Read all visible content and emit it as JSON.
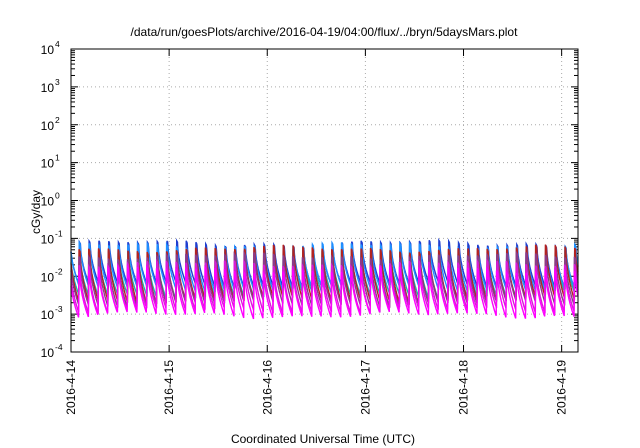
{
  "chart_data": {
    "type": "line",
    "title": "/data/run/goesPlots/archive/2016-04-19/04:00/flux/../bryn/5daysMars.plot",
    "xlabel": "Coordinated Universal Time (UTC)",
    "ylabel": "cGy/day",
    "yscale": "log",
    "ylim": [
      0.0001,
      10000
    ],
    "y_ticks": [
      {
        "value": 0.0001,
        "base": "10",
        "exp": "-4"
      },
      {
        "value": 0.001,
        "base": "10",
        "exp": "-3"
      },
      {
        "value": 0.01,
        "base": "10",
        "exp": "-2"
      },
      {
        "value": 0.1,
        "base": "10",
        "exp": "-1"
      },
      {
        "value": 1,
        "base": "10",
        "exp": "0"
      },
      {
        "value": 10,
        "base": "10",
        "exp": "1"
      },
      {
        "value": 100,
        "base": "10",
        "exp": "2"
      },
      {
        "value": 1000,
        "base": "10",
        "exp": "3"
      },
      {
        "value": 10000,
        "base": "10",
        "exp": "4"
      }
    ],
    "xlim": [
      "2016-04-14",
      "2016-04-19 04:00"
    ],
    "x_ticks": [
      "2016-4-14",
      "2016-4-15",
      "2016-4-16",
      "2016-4-17",
      "2016-4-18",
      "2016-4-19"
    ],
    "grid": true,
    "description_of_data": "Periodic sawtooth dose-rate curves (about 10 cycles per day) for several colored series, peaks near 0.05-0.09 cGy/day and troughs near 0.001-0.006 cGy/day.",
    "series": [
      {
        "color": "#1f3fd0",
        "peak": 0.075,
        "trough": 0.0055
      },
      {
        "color": "#1e90ff",
        "peak": 0.065,
        "trough": 0.0045
      },
      {
        "color": "#20b2aa",
        "peak": 0.04,
        "trough": 0.003
      },
      {
        "color": "#b22222",
        "peak": 0.055,
        "trough": 0.0022
      },
      {
        "color": "#8b3a8b",
        "peak": 0.035,
        "trough": 0.0018
      },
      {
        "color": "#d81bd8",
        "peak": 0.022,
        "trough": 0.0012
      },
      {
        "color": "#ff00ff",
        "peak": 0.015,
        "trough": 0.0009
      }
    ]
  }
}
